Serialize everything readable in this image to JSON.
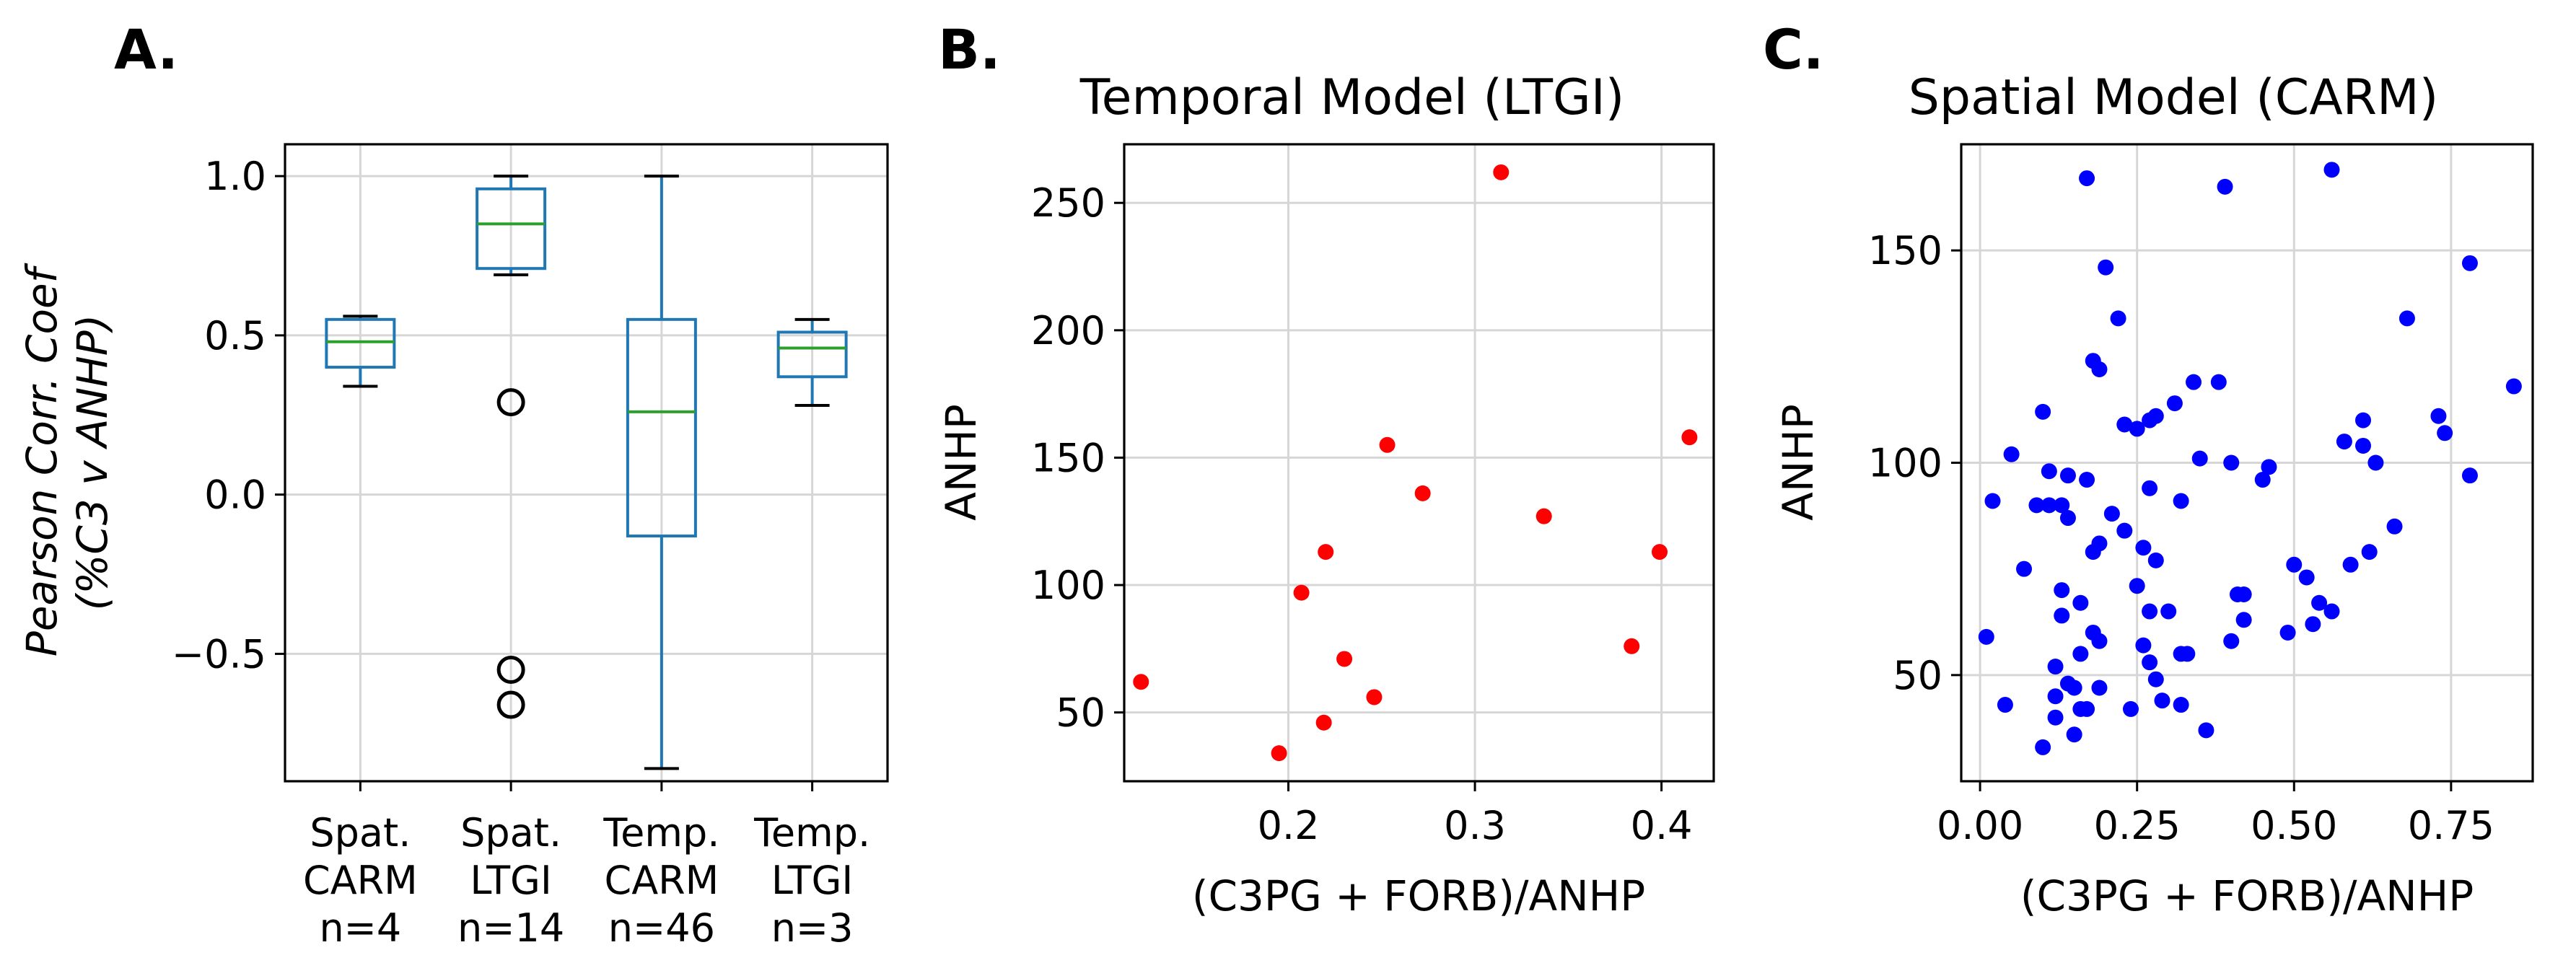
{
  "chart_data": [
    {
      "panel": "A.",
      "type": "box",
      "title": "",
      "ylabel_line1": "Pearson Corr. Coef",
      "ylabel_line2": "(%C3 v ANHP)",
      "ylim": [
        -0.9,
        1.1
      ],
      "yticks": [
        -0.5,
        0.0,
        0.5,
        1.0
      ],
      "ytick_labels": [
        "−0.5",
        "0.0",
        "0.5",
        "1.0"
      ],
      "groups": [
        {
          "label_lines": [
            "Spat.",
            "CARM",
            "n=4"
          ],
          "whislo": 0.34,
          "q1": 0.4,
          "median": 0.48,
          "q3": 0.55,
          "whishi": 0.56,
          "fliers": []
        },
        {
          "label_lines": [
            "Spat.",
            "LTGI",
            "n=14"
          ],
          "whislo": 0.69,
          "q1": 0.71,
          "median": 0.85,
          "q3": 0.96,
          "whishi": 1.0,
          "fliers": [
            0.29,
            -0.55,
            -0.66
          ]
        },
        {
          "label_lines": [
            "Temp.",
            "CARM",
            "n=46"
          ],
          "whislo": -0.86,
          "q1": -0.13,
          "median": 0.26,
          "q3": 0.55,
          "whishi": 1.0,
          "fliers": []
        },
        {
          "label_lines": [
            "Temp.",
            "LTGI",
            "n=3"
          ],
          "whislo": 0.28,
          "q1": 0.37,
          "median": 0.46,
          "q3": 0.51,
          "whishi": 0.55,
          "fliers": []
        }
      ]
    },
    {
      "panel": "B.",
      "type": "scatter",
      "title": "Temporal Model (LTGI)",
      "xlabel": "(C3PG + FORB)/ANHP",
      "ylabel": "ANHP",
      "xlim": [
        0.112,
        0.428
      ],
      "ylim": [
        23,
        273
      ],
      "xticks": [
        0.2,
        0.3,
        0.4
      ],
      "xtick_labels": [
        "0.2",
        "0.3",
        "0.4"
      ],
      "yticks": [
        50,
        100,
        150,
        200,
        250
      ],
      "ytick_labels": [
        "50",
        "100",
        "150",
        "200",
        "250"
      ],
      "color": "#ff0000",
      "points": [
        [
          0.121,
          62
        ],
        [
          0.195,
          34
        ],
        [
          0.207,
          97
        ],
        [
          0.219,
          46
        ],
        [
          0.22,
          113
        ],
        [
          0.23,
          71
        ],
        [
          0.246,
          56
        ],
        [
          0.253,
          155
        ],
        [
          0.272,
          136
        ],
        [
          0.314,
          262
        ],
        [
          0.337,
          127
        ],
        [
          0.384,
          76
        ],
        [
          0.399,
          113
        ],
        [
          0.415,
          158
        ]
      ]
    },
    {
      "panel": "C.",
      "type": "scatter",
      "title": "Spatial Model (CARM)",
      "xlabel": "(C3PG + FORB)/ANHP",
      "ylabel": "ANHP",
      "xlim": [
        -0.03,
        0.88
      ],
      "ylim": [
        25,
        175
      ],
      "xticks": [
        0.0,
        0.25,
        0.5,
        0.75
      ],
      "xtick_labels": [
        "0.00",
        "0.25",
        "0.50",
        "0.75"
      ],
      "yticks": [
        50,
        100,
        150
      ],
      "ytick_labels": [
        "50",
        "100",
        "150"
      ],
      "color": "#0000ff",
      "points": [
        [
          0.01,
          59
        ],
        [
          0.02,
          91
        ],
        [
          0.04,
          43
        ],
        [
          0.05,
          102
        ],
        [
          0.07,
          75
        ],
        [
          0.09,
          90
        ],
        [
          0.1,
          112
        ],
        [
          0.1,
          33
        ],
        [
          0.11,
          98
        ],
        [
          0.11,
          90
        ],
        [
          0.12,
          52
        ],
        [
          0.12,
          45
        ],
        [
          0.12,
          40
        ],
        [
          0.13,
          64
        ],
        [
          0.13,
          70
        ],
        [
          0.13,
          90
        ],
        [
          0.14,
          97
        ],
        [
          0.14,
          87
        ],
        [
          0.14,
          48
        ],
        [
          0.15,
          36
        ],
        [
          0.15,
          47
        ],
        [
          0.16,
          42
        ],
        [
          0.16,
          55
        ],
        [
          0.16,
          67
        ],
        [
          0.17,
          42
        ],
        [
          0.17,
          96
        ],
        [
          0.17,
          167
        ],
        [
          0.18,
          124
        ],
        [
          0.18,
          79
        ],
        [
          0.18,
          60
        ],
        [
          0.19,
          122
        ],
        [
          0.19,
          58
        ],
        [
          0.19,
          47
        ],
        [
          0.19,
          81
        ],
        [
          0.2,
          146
        ],
        [
          0.21,
          88
        ],
        [
          0.22,
          134
        ],
        [
          0.23,
          109
        ],
        [
          0.23,
          84
        ],
        [
          0.24,
          42
        ],
        [
          0.25,
          108
        ],
        [
          0.25,
          71
        ],
        [
          0.26,
          57
        ],
        [
          0.26,
          80
        ],
        [
          0.27,
          110
        ],
        [
          0.27,
          94
        ],
        [
          0.27,
          65
        ],
        [
          0.27,
          53
        ],
        [
          0.28,
          111
        ],
        [
          0.28,
          77
        ],
        [
          0.28,
          49
        ],
        [
          0.29,
          44
        ],
        [
          0.3,
          65
        ],
        [
          0.31,
          114
        ],
        [
          0.32,
          91
        ],
        [
          0.32,
          55
        ],
        [
          0.32,
          43
        ],
        [
          0.33,
          55
        ],
        [
          0.34,
          119
        ],
        [
          0.35,
          101
        ],
        [
          0.36,
          37
        ],
        [
          0.38,
          119
        ],
        [
          0.39,
          165
        ],
        [
          0.4,
          100
        ],
        [
          0.4,
          58
        ],
        [
          0.41,
          69
        ],
        [
          0.42,
          63
        ],
        [
          0.42,
          69
        ],
        [
          0.45,
          96
        ],
        [
          0.46,
          99
        ],
        [
          0.49,
          60
        ],
        [
          0.5,
          76
        ],
        [
          0.52,
          73
        ],
        [
          0.53,
          62
        ],
        [
          0.54,
          67
        ],
        [
          0.56,
          169
        ],
        [
          0.56,
          65
        ],
        [
          0.58,
          105
        ],
        [
          0.59,
          76
        ],
        [
          0.61,
          110
        ],
        [
          0.61,
          104
        ],
        [
          0.62,
          79
        ],
        [
          0.63,
          100
        ],
        [
          0.66,
          85
        ],
        [
          0.68,
          134
        ],
        [
          0.73,
          111
        ],
        [
          0.74,
          107
        ],
        [
          0.78,
          147
        ],
        [
          0.78,
          97
        ],
        [
          0.85,
          118
        ]
      ]
    }
  ]
}
